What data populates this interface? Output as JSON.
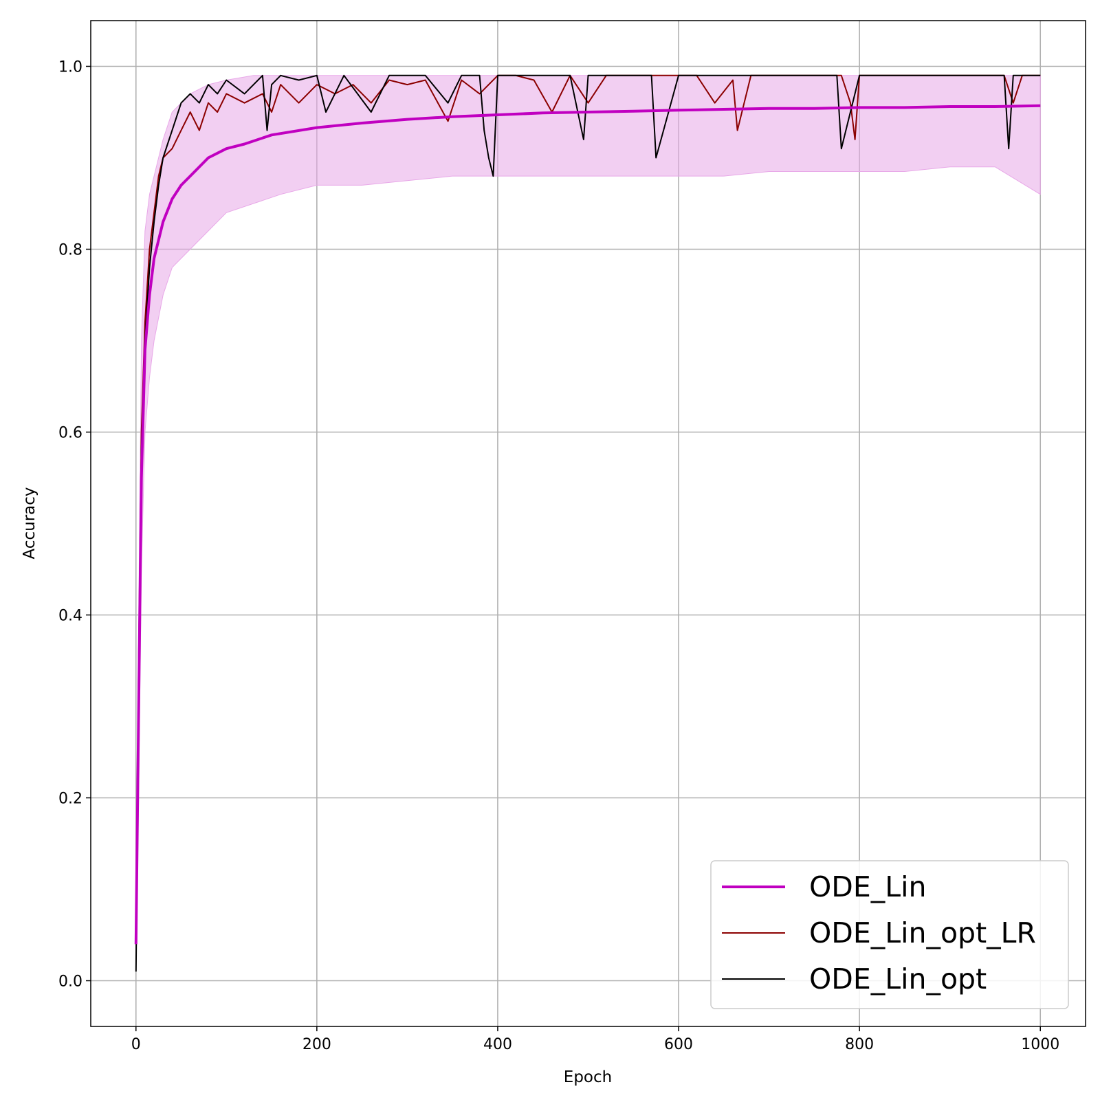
{
  "chart_data": {
    "type": "line",
    "title": "",
    "xlabel": "Epoch",
    "ylabel": "Accuracy",
    "xlim": [
      -50,
      1050
    ],
    "ylim": [
      -0.05,
      1.05
    ],
    "xticks": [
      0,
      200,
      400,
      600,
      800,
      1000
    ],
    "xtick_labels": [
      "0",
      "200",
      "400",
      "600",
      "800",
      "1000"
    ],
    "yticks": [
      0.0,
      0.2,
      0.4,
      0.6,
      0.8,
      1.0
    ],
    "ytick_labels": [
      "0.0",
      "0.2",
      "0.4",
      "0.6",
      "0.8",
      "1.0"
    ],
    "grid": true,
    "legend_position": "lower-right",
    "band": {
      "of_series": "ODE_Lin",
      "color": "#e8a8e8",
      "fill_opacity": 0.55,
      "x": [
        0,
        3,
        6,
        10,
        15,
        20,
        30,
        40,
        60,
        80,
        100,
        130,
        160,
        200,
        250,
        300,
        350,
        400,
        450,
        500,
        550,
        600,
        650,
        700,
        750,
        800,
        850,
        900,
        950,
        1000
      ],
      "lower": [
        0.02,
        0.2,
        0.45,
        0.6,
        0.66,
        0.7,
        0.75,
        0.78,
        0.8,
        0.82,
        0.84,
        0.85,
        0.86,
        0.87,
        0.87,
        0.875,
        0.88,
        0.88,
        0.88,
        0.88,
        0.88,
        0.88,
        0.88,
        0.885,
        0.885,
        0.885,
        0.885,
        0.89,
        0.89,
        0.86
      ],
      "upper": [
        0.06,
        0.4,
        0.7,
        0.82,
        0.86,
        0.88,
        0.92,
        0.95,
        0.97,
        0.98,
        0.985,
        0.99,
        0.99,
        0.99,
        0.99,
        0.99,
        0.99,
        0.99,
        0.99,
        0.99,
        0.99,
        0.99,
        0.99,
        0.99,
        0.99,
        0.99,
        0.99,
        0.99,
        0.99,
        0.99
      ]
    },
    "series": [
      {
        "name": "ODE_Lin",
        "color": "#c000c0",
        "stroke_width": 4,
        "x": [
          0,
          3,
          6,
          10,
          15,
          20,
          30,
          40,
          50,
          60,
          80,
          100,
          120,
          150,
          200,
          250,
          300,
          350,
          400,
          450,
          500,
          550,
          600,
          650,
          700,
          750,
          800,
          850,
          900,
          950,
          1000
        ],
        "y": [
          0.04,
          0.3,
          0.55,
          0.69,
          0.75,
          0.79,
          0.83,
          0.855,
          0.87,
          0.88,
          0.9,
          0.91,
          0.915,
          0.925,
          0.933,
          0.938,
          0.942,
          0.945,
          0.947,
          0.949,
          0.95,
          0.951,
          0.952,
          0.953,
          0.954,
          0.954,
          0.955,
          0.955,
          0.956,
          0.956,
          0.957
        ]
      },
      {
        "name": "ODE_Lin_opt_LR",
        "color": "#8b0000",
        "stroke_width": 2,
        "x": [
          0,
          3,
          6,
          10,
          15,
          20,
          25,
          30,
          40,
          50,
          60,
          70,
          80,
          90,
          100,
          120,
          140,
          150,
          160,
          180,
          200,
          220,
          240,
          260,
          280,
          300,
          320,
          345,
          360,
          380,
          400,
          420,
          440,
          460,
          480,
          500,
          520,
          540,
          560,
          580,
          600,
          620,
          640,
          660,
          665,
          680,
          700,
          720,
          740,
          760,
          780,
          790,
          795,
          800,
          820,
          840,
          860,
          880,
          900,
          920,
          940,
          960,
          970,
          980,
          1000
        ],
        "y": [
          0.05,
          0.35,
          0.6,
          0.72,
          0.8,
          0.84,
          0.88,
          0.9,
          0.91,
          0.93,
          0.95,
          0.93,
          0.96,
          0.95,
          0.97,
          0.96,
          0.97,
          0.95,
          0.98,
          0.96,
          0.98,
          0.97,
          0.98,
          0.96,
          0.985,
          0.98,
          0.985,
          0.94,
          0.985,
          0.97,
          0.99,
          0.99,
          0.985,
          0.95,
          0.99,
          0.96,
          0.99,
          0.99,
          0.99,
          0.99,
          0.99,
          0.99,
          0.96,
          0.985,
          0.93,
          0.99,
          0.99,
          0.99,
          0.99,
          0.99,
          0.99,
          0.96,
          0.92,
          0.99,
          0.99,
          0.99,
          0.99,
          0.99,
          0.99,
          0.99,
          0.99,
          0.99,
          0.96,
          0.99,
          0.99
        ]
      },
      {
        "name": "ODE_Lin_opt",
        "color": "#000000",
        "stroke_width": 2,
        "x": [
          0,
          3,
          6,
          10,
          15,
          20,
          25,
          30,
          40,
          50,
          60,
          70,
          80,
          90,
          100,
          120,
          140,
          145,
          150,
          160,
          180,
          200,
          210,
          230,
          260,
          280,
          300,
          320,
          345,
          360,
          380,
          385,
          390,
          395,
          400,
          420,
          440,
          460,
          480,
          495,
          500,
          520,
          540,
          560,
          570,
          575,
          600,
          620,
          640,
          660,
          680,
          700,
          720,
          740,
          760,
          775,
          780,
          800,
          820,
          840,
          860,
          880,
          900,
          920,
          940,
          960,
          965,
          970,
          980,
          1000
        ],
        "y": [
          0.01,
          0.3,
          0.58,
          0.7,
          0.78,
          0.83,
          0.87,
          0.9,
          0.93,
          0.96,
          0.97,
          0.96,
          0.98,
          0.97,
          0.985,
          0.97,
          0.99,
          0.93,
          0.98,
          0.99,
          0.985,
          0.99,
          0.95,
          0.99,
          0.95,
          0.99,
          0.99,
          0.99,
          0.96,
          0.99,
          0.99,
          0.93,
          0.9,
          0.88,
          0.99,
          0.99,
          0.99,
          0.99,
          0.99,
          0.92,
          0.99,
          0.99,
          0.99,
          0.99,
          0.99,
          0.9,
          0.99,
          0.99,
          0.99,
          0.99,
          0.99,
          0.99,
          0.99,
          0.99,
          0.99,
          0.99,
          0.91,
          0.99,
          0.99,
          0.99,
          0.99,
          0.99,
          0.99,
          0.99,
          0.99,
          0.99,
          0.91,
          0.99,
          0.99,
          0.99
        ]
      }
    ]
  }
}
